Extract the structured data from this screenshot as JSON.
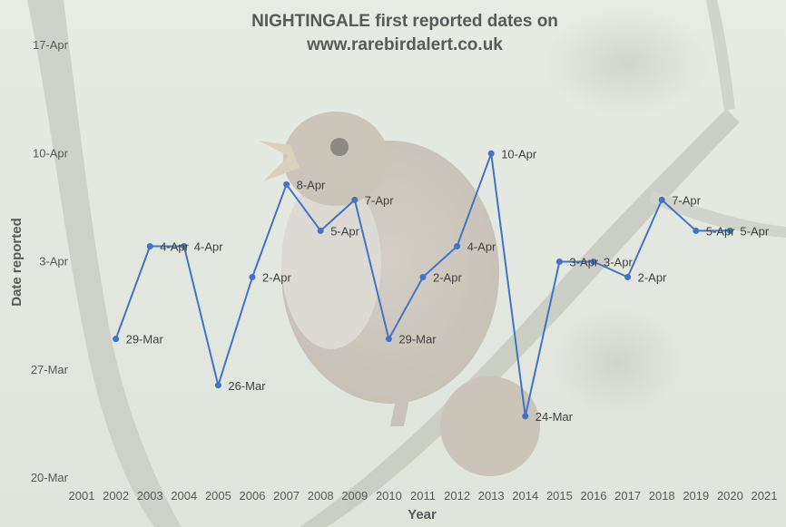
{
  "chart_data": {
    "type": "line",
    "title_line1": "NIGHTINGALE first reported dates on",
    "title_line2": "www.rarebirdalert.co.uk",
    "xlabel": "Year",
    "ylabel": "Date reported",
    "x_ticks": [
      2001,
      2002,
      2003,
      2004,
      2005,
      2006,
      2007,
      2008,
      2009,
      2010,
      2011,
      2012,
      2013,
      2014,
      2015,
      2016,
      2017,
      2018,
      2019,
      2020,
      2021
    ],
    "xlim": [
      2001,
      2021
    ],
    "y_ticks": [
      "20-Mar",
      "27-Mar",
      "3-Apr",
      "10-Apr",
      "17-Apr"
    ],
    "y_tick_days": [
      0,
      7,
      14,
      21,
      28
    ],
    "y_unit_note": "",
    "series": [
      {
        "name": "",
        "color": "#4472c4",
        "points": [
          {
            "year": 2002,
            "date": "29-Mar",
            "day": 9
          },
          {
            "year": 2003,
            "date": "4-Apr",
            "day": 15
          },
          {
            "year": 2004,
            "date": "4-Apr",
            "day": 15
          },
          {
            "year": 2005,
            "date": "26-Mar",
            "day": 6
          },
          {
            "year": 2006,
            "date": "2-Apr",
            "day": 13
          },
          {
            "year": 2007,
            "date": "8-Apr",
            "day": 19
          },
          {
            "year": 2008,
            "date": "5-Apr",
            "day": 16
          },
          {
            "year": 2009,
            "date": "7-Apr",
            "day": 18
          },
          {
            "year": 2010,
            "date": "29-Mar",
            "day": 9
          },
          {
            "year": 2011,
            "date": "2-Apr",
            "day": 13
          },
          {
            "year": 2012,
            "date": "4-Apr",
            "day": 15
          },
          {
            "year": 2013,
            "date": "10-Apr",
            "day": 21
          },
          {
            "year": 2014,
            "date": "24-Mar",
            "day": 4
          },
          {
            "year": 2015,
            "date": "3-Apr",
            "day": 14
          },
          {
            "year": 2016,
            "date": "3-Apr",
            "day": 14
          },
          {
            "year": 2017,
            "date": "2-Apr",
            "day": 13
          },
          {
            "year": 2018,
            "date": "7-Apr",
            "day": 18
          },
          {
            "year": 2019,
            "date": "5-Apr",
            "day": 16
          },
          {
            "year": 2020,
            "date": "5-Apr",
            "day": 16
          }
        ]
      }
    ],
    "grid": false,
    "background": "faded photo of a nightingale singing on a branch"
  }
}
